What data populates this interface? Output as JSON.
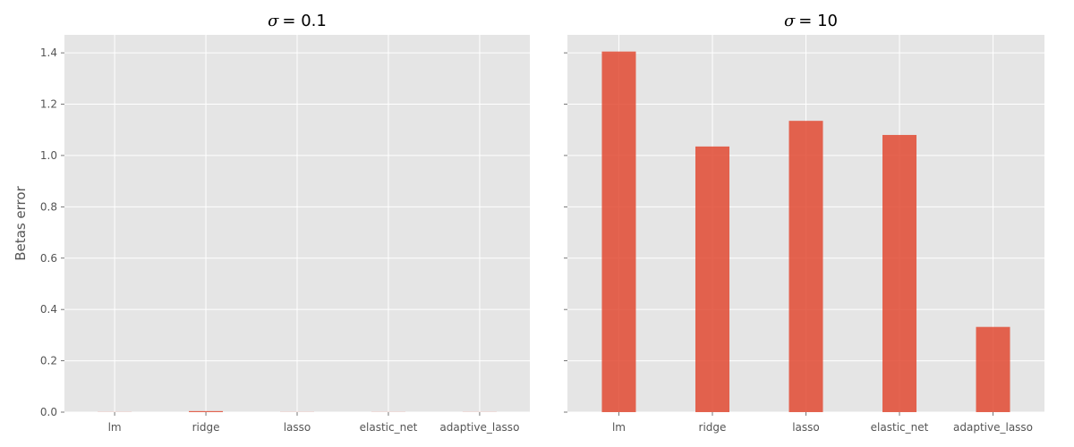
{
  "chart_data": [
    {
      "type": "bar",
      "title_symbol": "σ",
      "title_value": "= 0.1",
      "ylabel": "Betas error",
      "categories": [
        "lm",
        "ridge",
        "lasso",
        "elastic_net",
        "adaptive_lasso"
      ],
      "values": [
        0.0005,
        0.004,
        0.0005,
        0.0005,
        0.0005
      ],
      "ylim": [
        0,
        1.47
      ],
      "yticks": [
        0.0,
        0.2,
        0.4,
        0.6,
        0.8,
        1.0,
        1.2,
        1.4
      ],
      "grid": true
    },
    {
      "type": "bar",
      "title_symbol": "σ",
      "title_value": "= 10",
      "ylabel": "",
      "categories": [
        "lm",
        "ridge",
        "lasso",
        "elastic_net",
        "adaptive_lasso"
      ],
      "values": [
        1.405,
        1.035,
        1.135,
        1.08,
        0.332
      ],
      "ylim": [
        0,
        1.47
      ],
      "yticks": [
        0.0,
        0.2,
        0.4,
        0.6,
        0.8,
        1.0,
        1.2,
        1.4
      ],
      "grid": true
    }
  ],
  "style": {
    "bar_color": "#e24a33",
    "bar_opacity": 0.85
  }
}
